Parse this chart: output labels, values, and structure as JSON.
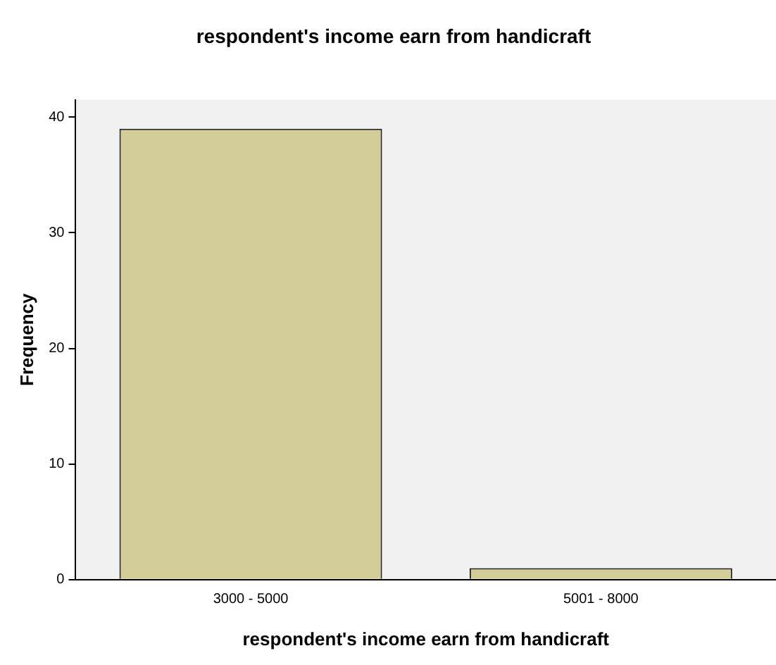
{
  "chart_data": {
    "type": "bar",
    "title": "respondent's income earn from handicraft",
    "xlabel": "respondent's income earn from handicraft",
    "ylabel": "Frequency",
    "categories": [
      "3000 - 5000",
      "5001 - 8000"
    ],
    "values": [
      39,
      1
    ],
    "color": "#d3ce97",
    "ylim": [
      0,
      41.5
    ],
    "yticks": [
      0,
      10,
      20,
      30,
      40
    ],
    "grid": false,
    "legend": false
  }
}
